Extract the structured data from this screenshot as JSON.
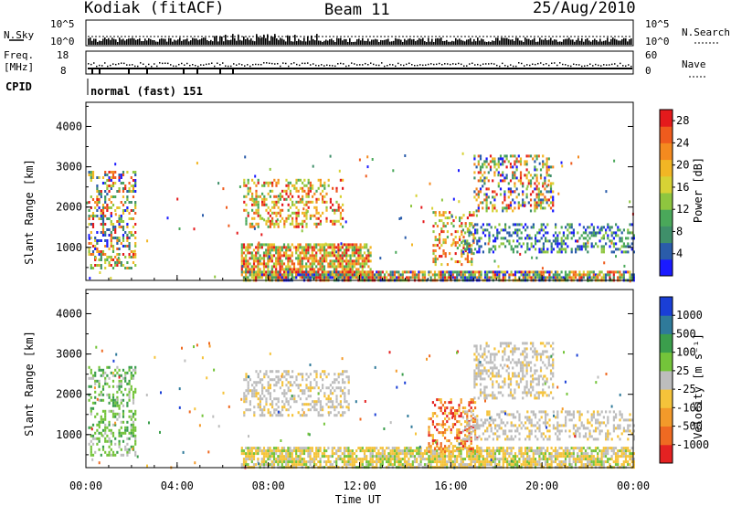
{
  "header": {
    "station": "Kodiak (fitACF)",
    "beam": "Beam 11",
    "date": "25/Aug/2010"
  },
  "top_panels": {
    "nsky_label": "N.Sky",
    "nsky_ticks": [
      "10^5",
      "10^0"
    ],
    "nsearch_label": "N.Search",
    "nsearch_ticks": [
      "10^5",
      "10^0"
    ],
    "freq_label": "Freq.",
    "freq_unit": "[MHz]",
    "freq_ticks": [
      "18",
      "8"
    ],
    "nave_label": "Nave",
    "nave_ticks": [
      "60",
      "0"
    ],
    "cpid_label": "CPID",
    "cpid_text": "normal (fast) 151"
  },
  "chart_data": [
    {
      "type": "heatmap",
      "name": "power-panel",
      "ylabel": "Slant Range [km]",
      "xlabel": "",
      "yticks": [
        "1000",
        "2000",
        "3000",
        "4000"
      ],
      "ylim": [
        180,
        4600
      ],
      "xlim": [
        0,
        24
      ],
      "colorbar": {
        "label": "Power [dB]",
        "ticks": [
          "4",
          "8",
          "12",
          "16",
          "20",
          "24",
          "28"
        ],
        "colors": [
          "#1a1aff",
          "#2a5caa",
          "#3f8f6a",
          "#4aa85a",
          "#8ec63f",
          "#d7d235",
          "#f2b624",
          "#f48a1f",
          "#ef5b1d",
          "#e41a1c"
        ],
        "range": [
          0,
          30
        ]
      },
      "regions": [
        {
          "t0": 0.1,
          "t1": 2.2,
          "r0": 500,
          "r1": 2900,
          "c": "mix"
        },
        {
          "t0": 6.9,
          "t1": 11.3,
          "r0": 1500,
          "r1": 2700,
          "c": "hot"
        },
        {
          "t0": 6.8,
          "t1": 12.5,
          "r0": 250,
          "r1": 1100,
          "c": "hot"
        },
        {
          "t0": 6.8,
          "t1": 24,
          "r0": 180,
          "r1": 420,
          "c": "mix"
        },
        {
          "t0": 15.2,
          "t1": 17.0,
          "r0": 600,
          "r1": 1900,
          "c": "hot"
        },
        {
          "t0": 16.5,
          "t1": 24,
          "r0": 900,
          "r1": 1600,
          "c": "cool"
        },
        {
          "t0": 17.0,
          "t1": 20.5,
          "r0": 1900,
          "r1": 3300,
          "c": "mix"
        }
      ]
    },
    {
      "type": "heatmap",
      "name": "velocity-panel",
      "ylabel": "Slant Range [km]",
      "xlabel": "Time UT",
      "yticks": [
        "1000",
        "2000",
        "3000",
        "4000"
      ],
      "xticks": [
        "00:00",
        "04:00",
        "08:00",
        "12:00",
        "16:00",
        "20:00",
        "00:00"
      ],
      "xtick_hours": [
        0,
        4,
        8,
        12,
        16,
        20,
        24
      ],
      "ylim": [
        180,
        4600
      ],
      "xlim": [
        0,
        24
      ],
      "colorbar": {
        "label": "Velocity [m s⁻¹]",
        "ticks": [
          "1000",
          "500",
          "100",
          "25",
          "-25",
          "-100",
          "-500",
          "-1000"
        ],
        "colors": [
          "#1a3fd6",
          "#2f7a9a",
          "#3b9e4c",
          "#74c43a",
          "#bdbdbd",
          "#f5c33a",
          "#f39a2a",
          "#ef6a22",
          "#e42222"
        ]
      },
      "regions": [
        {
          "t0": 0.1,
          "t1": 2.2,
          "r0": 500,
          "r1": 2700,
          "c": "green"
        },
        {
          "t0": 6.9,
          "t1": 11.5,
          "r0": 1500,
          "r1": 2600,
          "c": "grey"
        },
        {
          "t0": 6.8,
          "t1": 24,
          "r0": 180,
          "r1": 700,
          "c": "slow"
        },
        {
          "t0": 15.0,
          "t1": 17.2,
          "r0": 600,
          "r1": 1900,
          "c": "orange"
        },
        {
          "t0": 16.5,
          "t1": 24,
          "r0": 900,
          "r1": 1600,
          "c": "grey"
        },
        {
          "t0": 17.0,
          "t1": 20.5,
          "r0": 1900,
          "r1": 3300,
          "c": "grey"
        }
      ]
    }
  ]
}
